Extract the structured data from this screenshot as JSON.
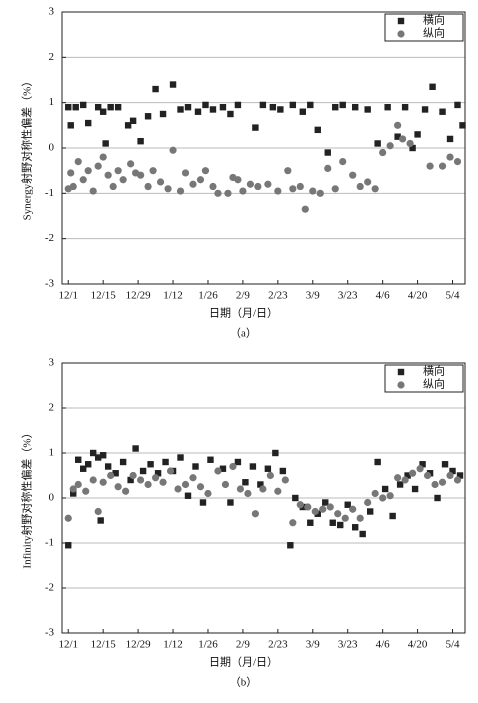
{
  "chart_data": [
    {
      "type": "scatter",
      "ylabel": "Synergy射野对称性偏差（%）",
      "xlabel": "日期（月/日）",
      "caption": "（a）",
      "xlim": [
        -2.5,
        159
      ],
      "ylim": [
        -3,
        3
      ],
      "yticks": [
        -3,
        -2,
        -1,
        0,
        1,
        2,
        3
      ],
      "grid": true,
      "legend": "upper right",
      "xticks": [
        {
          "value": 0,
          "label": "12/1"
        },
        {
          "value": 14,
          "label": "12/15"
        },
        {
          "value": 28,
          "label": "12/29"
        },
        {
          "value": 42,
          "label": "1/12"
        },
        {
          "value": 56,
          "label": "1/26"
        },
        {
          "value": 70,
          "label": "2/9"
        },
        {
          "value": 84,
          "label": "2/23"
        },
        {
          "value": 98,
          "label": "3/9"
        },
        {
          "value": 112,
          "label": "3/23"
        },
        {
          "value": 126,
          "label": "4/6"
        },
        {
          "value": 140,
          "label": "4/20"
        },
        {
          "value": 154,
          "label": "5/4"
        }
      ],
      "series": [
        {
          "name": "横向",
          "color": "#222222",
          "marker": "square",
          "x": [
            0,
            1,
            3,
            6,
            8,
            12,
            14,
            15,
            17,
            20,
            24,
            26,
            29,
            32,
            35,
            38,
            42,
            45,
            48,
            52,
            55,
            58,
            62,
            65,
            68,
            75,
            78,
            82,
            85,
            90,
            94,
            97,
            100,
            104,
            107,
            110,
            115,
            120,
            124,
            128,
            132,
            135,
            138,
            140,
            143,
            146,
            150,
            153,
            156,
            158
          ],
          "values": [
            0.9,
            0.5,
            0.9,
            0.95,
            0.55,
            0.9,
            0.8,
            0.1,
            0.9,
            0.9,
            0.5,
            0.6,
            0.15,
            0.7,
            1.3,
            0.75,
            1.4,
            0.85,
            0.9,
            0.8,
            0.95,
            0.85,
            0.9,
            0.75,
            0.95,
            0.45,
            0.95,
            0.9,
            0.85,
            0.95,
            0.8,
            0.95,
            0.4,
            -0.1,
            0.9,
            0.95,
            0.9,
            0.85,
            0.1,
            0.9,
            0.25,
            0.9,
            0.0,
            0.3,
            0.85,
            1.35,
            0.8,
            0.2,
            0.95,
            0.5
          ]
        },
        {
          "name": "纵向",
          "color": "#777777",
          "marker": "circle",
          "x": [
            0,
            1,
            2,
            4,
            6,
            8,
            10,
            12,
            14,
            16,
            18,
            20,
            22,
            25,
            27,
            29,
            32,
            34,
            37,
            40,
            42,
            45,
            47,
            50,
            53,
            55,
            58,
            60,
            64,
            66,
            68,
            70,
            73,
            76,
            80,
            84,
            88,
            90,
            93,
            95,
            98,
            101,
            104,
            107,
            110,
            114,
            117,
            120,
            123,
            126,
            129,
            132,
            134,
            137,
            145,
            150,
            153,
            156
          ],
          "values": [
            -0.9,
            -0.55,
            -0.85,
            -0.3,
            -0.7,
            -0.5,
            -0.95,
            -0.4,
            -0.2,
            -0.6,
            -0.85,
            -0.5,
            -0.7,
            -0.35,
            -0.55,
            -0.6,
            -0.85,
            -0.5,
            -0.75,
            -0.9,
            -0.05,
            -0.95,
            -0.55,
            -0.8,
            -0.7,
            -0.5,
            -0.85,
            -1.0,
            -1.0,
            -0.65,
            -0.7,
            -0.95,
            -0.8,
            -0.85,
            -0.8,
            -0.95,
            -0.5,
            -0.9,
            -0.85,
            -1.35,
            -0.95,
            -1.0,
            -0.45,
            -0.9,
            -0.3,
            -0.6,
            -0.85,
            -0.75,
            -0.9,
            -0.1,
            0.05,
            0.5,
            0.2,
            0.1,
            -0.4,
            -0.4,
            -0.2,
            -0.3
          ]
        }
      ]
    },
    {
      "type": "scatter",
      "ylabel": "Infinity射野对称性偏差（%）",
      "xlabel": "日期（月/日）",
      "caption": "（b）",
      "xlim": [
        -2.5,
        159
      ],
      "ylim": [
        -3,
        3
      ],
      "yticks": [
        -3,
        -2,
        -1,
        0,
        1,
        2,
        3
      ],
      "grid": true,
      "legend": "upper right",
      "xticks": [
        {
          "value": 0,
          "label": "12/1"
        },
        {
          "value": 14,
          "label": "12/15"
        },
        {
          "value": 28,
          "label": "12/29"
        },
        {
          "value": 42,
          "label": "1/12"
        },
        {
          "value": 56,
          "label": "1/26"
        },
        {
          "value": 70,
          "label": "2/9"
        },
        {
          "value": 84,
          "label": "2/23"
        },
        {
          "value": 98,
          "label": "3/9"
        },
        {
          "value": 112,
          "label": "3/23"
        },
        {
          "value": 126,
          "label": "4/6"
        },
        {
          "value": 140,
          "label": "4/20"
        },
        {
          "value": 154,
          "label": "5/4"
        }
      ],
      "series": [
        {
          "name": "横向",
          "color": "#222222",
          "marker": "square",
          "x": [
            0,
            2,
            4,
            6,
            8,
            10,
            12,
            13,
            14,
            16,
            19,
            22,
            25,
            27,
            30,
            33,
            36,
            39,
            42,
            45,
            48,
            51,
            54,
            57,
            62,
            65,
            68,
            71,
            74,
            77,
            80,
            83,
            86,
            89,
            91,
            94,
            97,
            100,
            103,
            106,
            109,
            112,
            115,
            118,
            121,
            124,
            127,
            130,
            133,
            136,
            139,
            142,
            145,
            148,
            151,
            154,
            157
          ],
          "values": [
            -1.05,
            0.1,
            0.85,
            0.65,
            0.75,
            1.0,
            0.9,
            -0.5,
            0.95,
            0.7,
            0.55,
            0.8,
            0.4,
            1.1,
            0.6,
            0.75,
            0.55,
            0.8,
            0.6,
            0.9,
            0.05,
            0.7,
            -0.1,
            0.85,
            0.65,
            -0.1,
            0.8,
            0.35,
            0.7,
            0.3,
            0.65,
            1.0,
            0.6,
            -1.05,
            0.0,
            -0.2,
            -0.55,
            -0.35,
            -0.1,
            -0.55,
            -0.6,
            -0.15,
            -0.65,
            -0.8,
            -0.3,
            0.8,
            0.2,
            -0.4,
            0.3,
            0.5,
            0.2,
            0.75,
            0.55,
            0.0,
            0.75,
            0.6,
            0.5
          ]
        },
        {
          "name": "纵向",
          "color": "#777777",
          "marker": "circle",
          "x": [
            0,
            2,
            4,
            7,
            10,
            12,
            14,
            17,
            20,
            23,
            26,
            29,
            32,
            35,
            38,
            41,
            44,
            47,
            50,
            53,
            56,
            60,
            63,
            66,
            69,
            72,
            75,
            78,
            81,
            84,
            87,
            90,
            93,
            96,
            99,
            102,
            105,
            108,
            111,
            114,
            117,
            120,
            123,
            126,
            129,
            132,
            135,
            138,
            141,
            144,
            147,
            150,
            153,
            156
          ],
          "values": [
            -0.45,
            0.2,
            0.3,
            0.15,
            0.4,
            -0.3,
            0.35,
            0.5,
            0.25,
            0.15,
            0.5,
            0.4,
            0.3,
            0.45,
            0.35,
            0.6,
            0.2,
            0.3,
            0.45,
            0.25,
            0.1,
            0.6,
            0.3,
            0.7,
            0.2,
            0.1,
            -0.35,
            0.2,
            0.5,
            0.15,
            0.4,
            -0.55,
            -0.15,
            -0.2,
            -0.3,
            -0.25,
            -0.2,
            -0.35,
            -0.45,
            -0.25,
            -0.45,
            -0.1,
            0.1,
            0.0,
            0.05,
            0.45,
            0.4,
            0.55,
            0.65,
            0.5,
            0.3,
            0.35,
            0.5,
            0.4
          ]
        }
      ]
    }
  ]
}
